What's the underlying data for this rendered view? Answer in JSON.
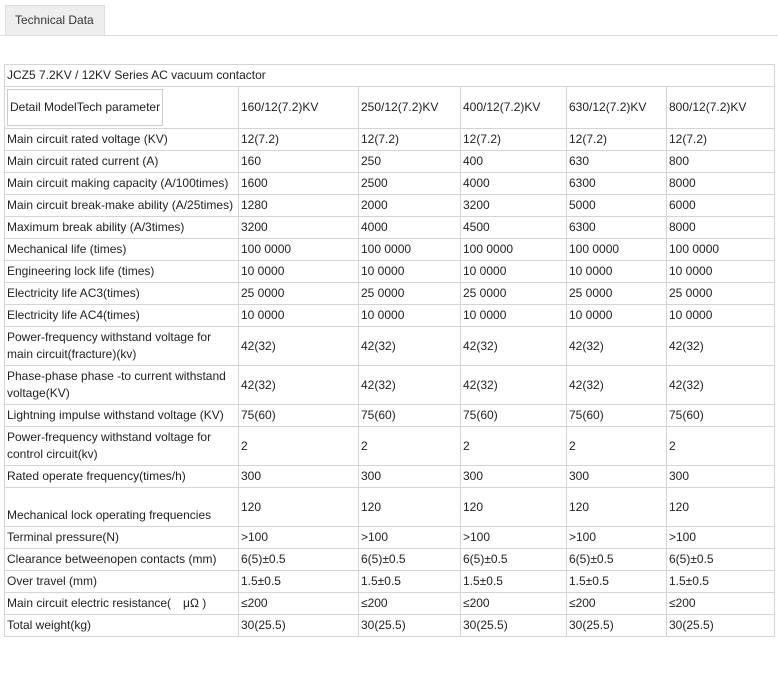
{
  "tab": {
    "title": "Technical Data"
  },
  "table": {
    "caption": "JCZ5 7.2KV / 12KV Series AC vacuum contactor",
    "header": [
      "Detail ModelTech parameter",
      "160/12(7.2)KV",
      "250/12(7.2)KV",
      "400/12(7.2)KV",
      "630/12(7.2)KV",
      "800/12(7.2)KV"
    ],
    "rows": [
      [
        "Main circuit rated voltage (KV)",
        "12(7.2)",
        "12(7.2)",
        "12(7.2)",
        "12(7.2)",
        "12(7.2)"
      ],
      [
        "Main circuit rated current (A)",
        "160",
        "250",
        "400",
        "630",
        "800"
      ],
      [
        "Main circuit making capacity (A/100times)",
        "1600",
        "2500",
        "4000",
        "6300",
        "8000"
      ],
      [
        "Main circuit break-make ability (A/25times)",
        "1280",
        "2000",
        "3200",
        "5000",
        "6000"
      ],
      [
        "Maximum break ability (A/3times)",
        "3200",
        "4000",
        "4500",
        "6300",
        "8000"
      ],
      [
        "Mechanical life (times)",
        "100 0000",
        "100 0000",
        "100 0000",
        "100 0000",
        "100 0000"
      ],
      [
        "Engineering lock life (times)",
        "10 0000",
        "10 0000",
        "10 0000",
        "10 0000",
        "10 0000"
      ],
      [
        "Electricity life AC3(times)",
        "25 0000",
        "25 0000",
        "25 0000",
        "25 0000",
        "25 0000"
      ],
      [
        "Electricity life AC4(times)",
        "10 0000",
        "10 0000",
        "10 0000",
        "10 0000",
        "10 0000"
      ],
      [
        "Power-frequency withstand voltage for main circuit(fracture)(kv)",
        "42(32)",
        "42(32)",
        "42(32)",
        "42(32)",
        "42(32)"
      ],
      [
        "Phase-phase phase -to current withstand voltage(KV)",
        "42(32)",
        "42(32)",
        "42(32)",
        "42(32)",
        "42(32)"
      ],
      [
        "Lightning impulse withstand voltage (KV)",
        "75(60)",
        "75(60)",
        "75(60)",
        "75(60)",
        "75(60)"
      ],
      [
        "Power-frequency withstand voltage for control circuit(kv)",
        "2",
        "2",
        "2",
        "2",
        "2"
      ],
      [
        "Rated operate frequency(times/h)",
        "300",
        "300",
        "300",
        "300",
        "300"
      ],
      [
        "Mechanical lock operating frequencies",
        "120",
        "120",
        "120",
        "120",
        "120"
      ],
      [
        "Terminal pressure(N)",
        ">100",
        ">100",
        ">100",
        ">100",
        ">100"
      ],
      [
        "Clearance betweenopen contacts (mm)",
        "6(5)±0.5",
        "6(5)±0.5",
        "6(5)±0.5",
        "6(5)±0.5",
        "6(5)±0.5"
      ],
      [
        "Over travel (mm)",
        "1.5±0.5",
        "1.5±0.5",
        "1.5±0.5",
        "1.5±0.5",
        "1.5±0.5"
      ],
      [
        "Main circuit electric resistance(　μΩ )",
        "≤200",
        "≤200",
        "≤200",
        "≤200",
        "≤200"
      ],
      [
        "Total weight(kg)",
        "30(25.5)",
        "30(25.5)",
        "30(25.5)",
        "30(25.5)",
        "30(25.5)"
      ]
    ]
  }
}
